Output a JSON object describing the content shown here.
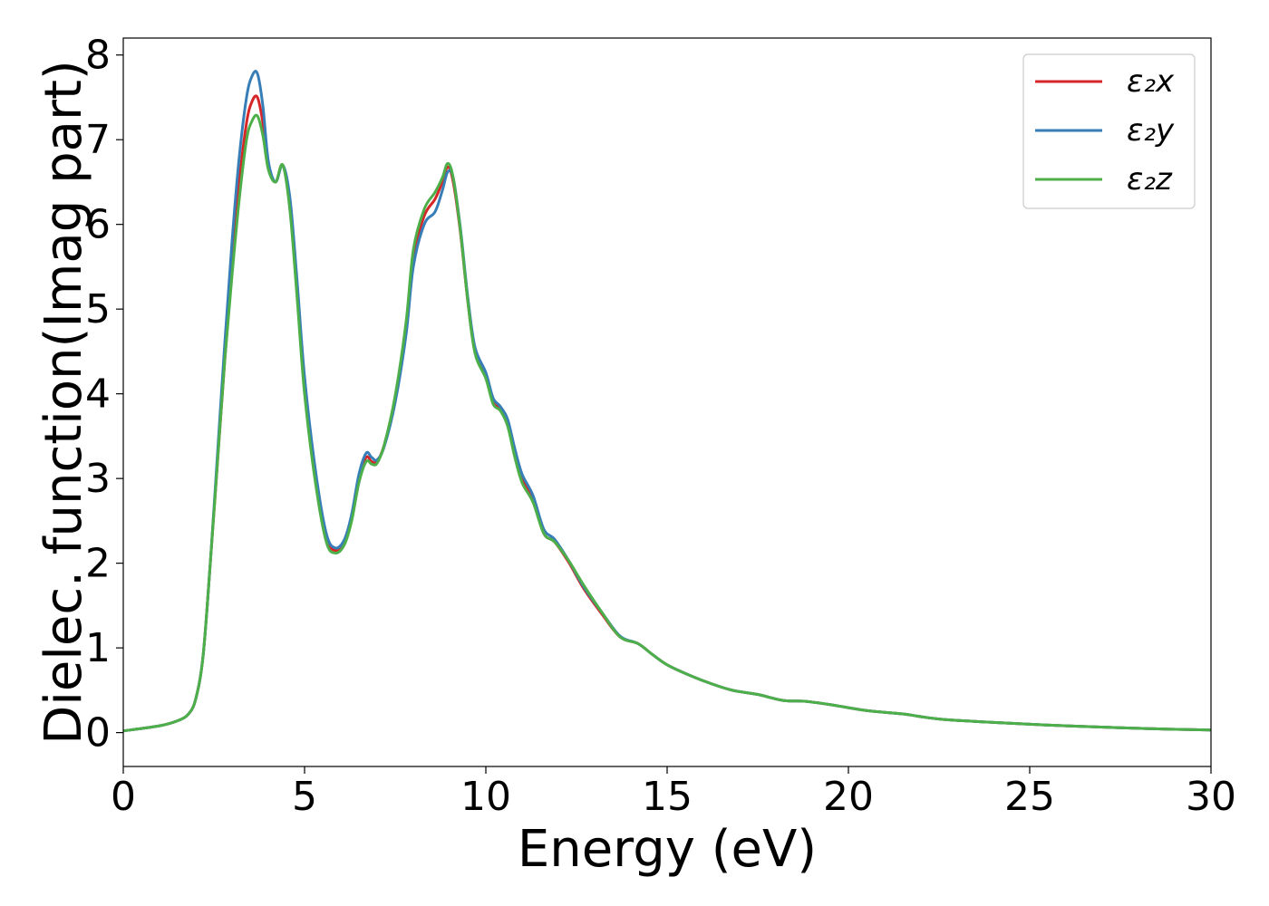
{
  "chart_data": {
    "type": "line",
    "xlabel": "Energy (eV)",
    "ylabel": "Dielec. function(Imag part)",
    "xlim": [
      0,
      30
    ],
    "ylim": [
      -0.4,
      8.2
    ],
    "xticks": [
      0,
      5,
      10,
      15,
      20,
      25,
      30
    ],
    "yticks": [
      0,
      1,
      2,
      3,
      4,
      5,
      6,
      7,
      8
    ],
    "grid": false,
    "legend_position": "top-right",
    "x": [
      0,
      1,
      1.5,
      1.8,
      2.0,
      2.2,
      2.4,
      2.6,
      2.8,
      3.0,
      3.2,
      3.4,
      3.55,
      3.7,
      3.85,
      4.0,
      4.2,
      4.4,
      4.6,
      4.8,
      5.0,
      5.3,
      5.6,
      5.85,
      6.1,
      6.3,
      6.5,
      6.7,
      6.85,
      7.0,
      7.2,
      7.5,
      7.8,
      8.0,
      8.3,
      8.6,
      8.8,
      8.95,
      9.1,
      9.3,
      9.5,
      9.7,
      10.0,
      10.2,
      10.4,
      10.6,
      10.8,
      11.0,
      11.3,
      11.6,
      11.9,
      12.3,
      12.7,
      13.2,
      13.7,
      14.2,
      14.6,
      15.0,
      15.6,
      16.2,
      16.8,
      17.5,
      18.2,
      18.8,
      19.5,
      20.5,
      21.5,
      22.5,
      24,
      26,
      28,
      30
    ],
    "series": [
      {
        "name": "ε₂x",
        "color": "#d62728",
        "y": [
          0.02,
          0.08,
          0.14,
          0.22,
          0.4,
          0.9,
          2.0,
          3.2,
          4.4,
          5.5,
          6.5,
          7.2,
          7.45,
          7.5,
          7.2,
          6.7,
          6.5,
          6.7,
          6.2,
          5.2,
          4.1,
          3.0,
          2.3,
          2.15,
          2.25,
          2.55,
          3.0,
          3.25,
          3.2,
          3.2,
          3.4,
          3.95,
          4.8,
          5.6,
          6.1,
          6.3,
          6.5,
          6.68,
          6.5,
          5.9,
          5.1,
          4.5,
          4.2,
          3.9,
          3.82,
          3.65,
          3.3,
          3.0,
          2.75,
          2.35,
          2.25,
          2.0,
          1.7,
          1.4,
          1.13,
          1.05,
          0.92,
          0.8,
          0.68,
          0.58,
          0.5,
          0.45,
          0.38,
          0.37,
          0.33,
          0.26,
          0.22,
          0.16,
          0.12,
          0.08,
          0.05,
          0.03
        ]
      },
      {
        "name": "ε₂y",
        "color": "#377eb8",
        "y": [
          0.02,
          0.08,
          0.14,
          0.22,
          0.4,
          0.9,
          2.0,
          3.3,
          4.6,
          5.8,
          6.8,
          7.5,
          7.75,
          7.78,
          7.4,
          6.75,
          6.5,
          6.7,
          6.3,
          5.3,
          4.2,
          3.1,
          2.35,
          2.18,
          2.28,
          2.58,
          3.05,
          3.3,
          3.25,
          3.22,
          3.38,
          3.9,
          4.7,
          5.5,
          6.0,
          6.15,
          6.4,
          6.62,
          6.55,
          5.95,
          5.15,
          4.55,
          4.25,
          3.95,
          3.85,
          3.7,
          3.35,
          3.05,
          2.8,
          2.4,
          2.28,
          2.02,
          1.72,
          1.42,
          1.14,
          1.05,
          0.92,
          0.8,
          0.68,
          0.58,
          0.5,
          0.45,
          0.38,
          0.37,
          0.33,
          0.26,
          0.22,
          0.16,
          0.12,
          0.08,
          0.05,
          0.03
        ]
      },
      {
        "name": "ε₂z",
        "color": "#4daf4a",
        "y": [
          0.02,
          0.08,
          0.14,
          0.22,
          0.4,
          0.9,
          2.0,
          3.2,
          4.4,
          5.4,
          6.3,
          7.0,
          7.22,
          7.28,
          7.05,
          6.65,
          6.5,
          6.7,
          6.15,
          5.1,
          4.0,
          2.95,
          2.25,
          2.12,
          2.22,
          2.5,
          2.95,
          3.2,
          3.17,
          3.18,
          3.4,
          3.98,
          4.85,
          5.7,
          6.18,
          6.38,
          6.55,
          6.72,
          6.55,
          5.92,
          5.1,
          4.48,
          4.18,
          3.88,
          3.8,
          3.62,
          3.25,
          2.95,
          2.72,
          2.35,
          2.25,
          2.02,
          1.74,
          1.42,
          1.13,
          1.05,
          0.92,
          0.8,
          0.68,
          0.58,
          0.5,
          0.45,
          0.38,
          0.37,
          0.33,
          0.26,
          0.22,
          0.16,
          0.12,
          0.08,
          0.05,
          0.03
        ]
      }
    ]
  }
}
